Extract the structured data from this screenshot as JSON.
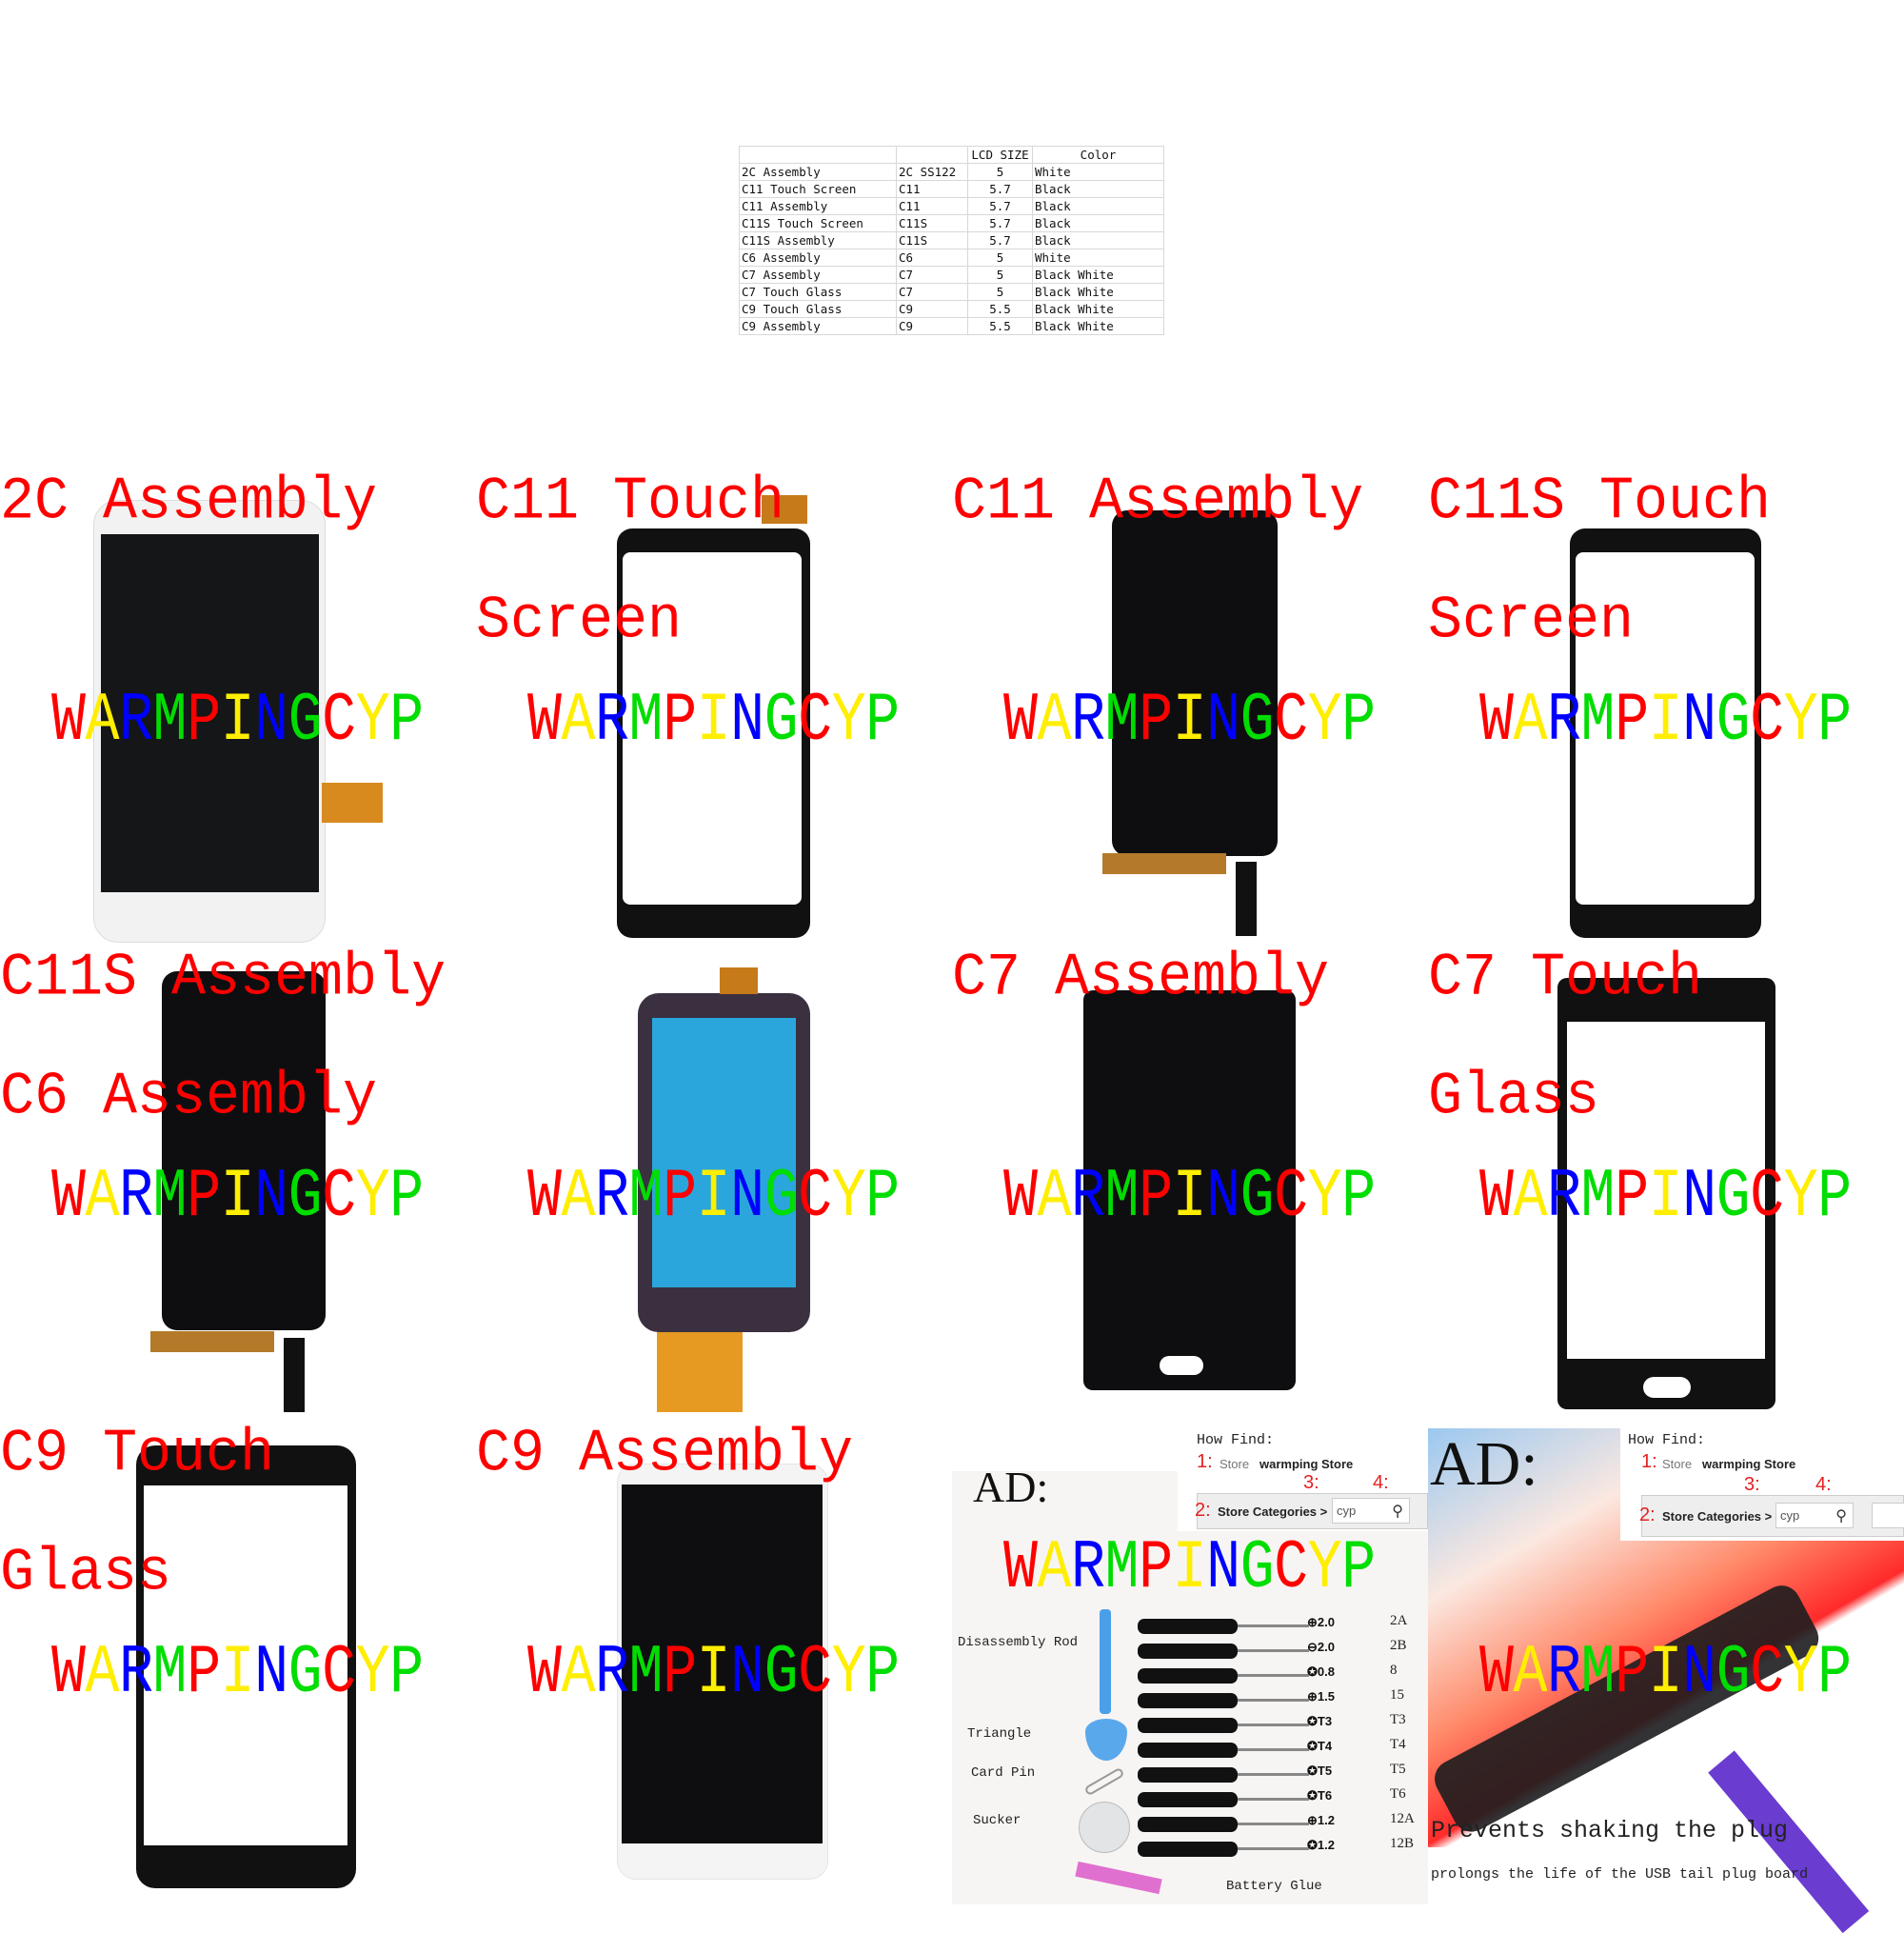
{
  "spec_table": {
    "headers": [
      "",
      "",
      "LCD SIZE",
      "Color"
    ],
    "rows": [
      [
        "2C Assembly",
        "2C SS122",
        "5",
        "White"
      ],
      [
        "C11 Touch Screen",
        "C11",
        "5.7",
        "Black"
      ],
      [
        "C11 Assembly",
        "C11",
        "5.7",
        "Black"
      ],
      [
        "C11S Touch Screen",
        "C11S",
        "5.7",
        "Black"
      ],
      [
        "C11S Assembly",
        "C11S",
        "5.7",
        "Black"
      ],
      [
        "C6 Assembly",
        "C6",
        "5",
        "White"
      ],
      [
        "C7 Assembly",
        "C7",
        "5",
        "Black White"
      ],
      [
        "C7 Touch Glass",
        "C7",
        "5",
        "Black White"
      ],
      [
        "C9 Touch Glass",
        "C9",
        "5.5",
        "Black White"
      ],
      [
        "C9 Assembly",
        "C9",
        "5.5",
        "Black White"
      ]
    ]
  },
  "panels": {
    "p2c": {
      "line1": "2C Assembly"
    },
    "pc11t": {
      "line1": "C11 Touch",
      "line2": "Screen"
    },
    "pc11a": {
      "line1": "C11 Assembly"
    },
    "pc11st": {
      "line1": "C11S Touch",
      "line2": "Screen"
    },
    "pc11sa": {
      "line1": "C11S Assembly",
      "line2": "C6 Assembly"
    },
    "pc7a": {
      "line1": "C7 Assembly"
    },
    "pc7t": {
      "line1": "C7 Touch",
      "line2": "Glass"
    },
    "pc9t": {
      "line1": "C9 Touch",
      "line2": "Glass"
    },
    "pc9a": {
      "line1": "C9 Assembly"
    }
  },
  "watermark": {
    "letters": [
      "W",
      "A",
      "R",
      "M",
      "P",
      "I",
      "N",
      "G",
      "C",
      "Y",
      "P"
    ],
    "colors": [
      "#ff0000",
      "#ffee00",
      "#0000ff",
      "#00dd00",
      "#ff0000",
      "#ffee00",
      "#0000ff",
      "#00dd00",
      "#ff0000",
      "#ffee00",
      "#00dd00"
    ]
  },
  "ad": {
    "title": "AD:",
    "how_find": "How Find:",
    "step1_num": "1:",
    "step1_label": "Store",
    "step1_value": "warmping Store",
    "step2_num": "2:",
    "step2_label": "Store Categories >",
    "step3_num": "3:",
    "search_value": "cyp",
    "step4_num": "4:",
    "tools": {
      "disassembly_rod": "Disassembly Rod",
      "triangle": "Triangle",
      "card_pin": "Card Pin",
      "sucker": "Sucker",
      "battery_glue": "Battery Glue",
      "screwdrivers": [
        {
          "code": "⊕2.0",
          "key": "2A"
        },
        {
          "code": "⊖2.0",
          "key": "2B"
        },
        {
          "code": "✪0.8",
          "key": "8"
        },
        {
          "code": "⊕1.5",
          "key": "15"
        },
        {
          "code": "✪T3",
          "key": "T3"
        },
        {
          "code": "✪T4",
          "key": "T4"
        },
        {
          "code": "✪T5",
          "key": "T5"
        },
        {
          "code": "✪T6",
          "key": "T6"
        },
        {
          "code": "⊕1.2",
          "key": "12A"
        },
        {
          "code": "✪1.2",
          "key": "12B"
        }
      ]
    },
    "cable_headline": "Prevents shaking the plug",
    "cable_sub": "prolongs the life of the USB tail plug board"
  }
}
